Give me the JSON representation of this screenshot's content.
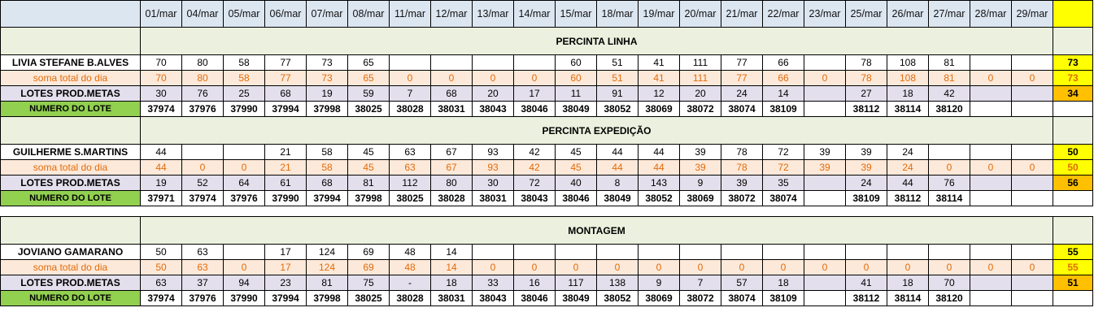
{
  "header": {
    "dates": [
      "01/mar",
      "04/mar",
      "05/mar",
      "06/mar",
      "07/mar",
      "08/mar",
      "11/mar",
      "12/mar",
      "13/mar",
      "14/mar",
      "15/mar",
      "18/mar",
      "19/mar",
      "20/mar",
      "21/mar",
      "22/mar",
      "23/mar",
      "25/mar",
      "26/mar",
      "27/mar",
      "28/mar",
      "29/mar"
    ]
  },
  "sections": [
    {
      "title": "PERCINTA LINHA",
      "worker": {
        "name": "LIVIA STEFANE B.ALVES",
        "values": [
          "70",
          "80",
          "58",
          "77",
          "73",
          "65",
          "",
          "",
          "",
          "",
          "60",
          "51",
          "41",
          "111",
          "77",
          "66",
          "",
          "78",
          "108",
          "81",
          "",
          ""
        ],
        "total": "73"
      },
      "soma": {
        "name": "soma total  do dia",
        "values": [
          "70",
          "80",
          "58",
          "77",
          "73",
          "65",
          "0",
          "0",
          "0",
          "0",
          "60",
          "51",
          "41",
          "111",
          "77",
          "66",
          "0",
          "78",
          "108",
          "81",
          "0",
          "0"
        ],
        "total": "73"
      },
      "lotes": {
        "name": "LOTES PROD.METAS",
        "values": [
          "30",
          "76",
          "25",
          "68",
          "19",
          "59",
          "7",
          "68",
          "20",
          "17",
          "11",
          "91",
          "12",
          "20",
          "24",
          "14",
          "",
          "27",
          "18",
          "42",
          "",
          ""
        ],
        "total": "34"
      },
      "numero": {
        "name": "NUMERO DO LOTE",
        "values": [
          "37974",
          "37976",
          "37990",
          "37994",
          "37998",
          "38025",
          "38028",
          "38031",
          "38043",
          "38046",
          "38049",
          "38052",
          "38069",
          "38072",
          "38074",
          "38109",
          "",
          "38112",
          "38114",
          "38120",
          "",
          ""
        ],
        "total": ""
      }
    },
    {
      "title": "PERCINTA EXPEDIÇÃO",
      "worker": {
        "name": "GUILHERME S.MARTINS",
        "values": [
          "44",
          "",
          "",
          "21",
          "58",
          "45",
          "63",
          "67",
          "93",
          "42",
          "45",
          "44",
          "44",
          "39",
          "78",
          "72",
          "39",
          "39",
          "24",
          "",
          "",
          ""
        ],
        "total": "50"
      },
      "soma": {
        "name": "soma total  do dia",
        "values": [
          "44",
          "0",
          "0",
          "21",
          "58",
          "45",
          "63",
          "67",
          "93",
          "42",
          "45",
          "44",
          "44",
          "39",
          "78",
          "72",
          "39",
          "39",
          "24",
          "0",
          "0",
          "0"
        ],
        "total": "50"
      },
      "lotes": {
        "name": "LOTES PROD.METAS",
        "values": [
          "19",
          "52",
          "64",
          "61",
          "68",
          "81",
          "112",
          "80",
          "30",
          "72",
          "40",
          "8",
          "143",
          "9",
          "39",
          "35",
          "",
          "24",
          "44",
          "76",
          "",
          ""
        ],
        "total": "56"
      },
      "numero": {
        "name": "NUMERO DO LOTE",
        "values": [
          "37971",
          "37974",
          "37976",
          "37990",
          "37994",
          "37998",
          "38025",
          "38028",
          "38031",
          "38043",
          "38046",
          "38049",
          "38052",
          "38069",
          "38072",
          "38074",
          "",
          "38109",
          "38112",
          "38114",
          "",
          ""
        ],
        "total": ""
      }
    },
    {
      "title": "MONTAGEM",
      "worker": {
        "name": "JOVIANO GAMARANO",
        "values": [
          "50",
          "63",
          "",
          "17",
          "124",
          "69",
          "48",
          "14",
          "",
          "",
          "",
          "",
          "",
          "",
          "",
          "",
          "",
          "",
          "",
          "",
          "",
          ""
        ],
        "total": "55"
      },
      "soma": {
        "name": "soma total  do dia",
        "values": [
          "50",
          "63",
          "0",
          "17",
          "124",
          "69",
          "48",
          "14",
          "0",
          "0",
          "0",
          "0",
          "0",
          "0",
          "0",
          "0",
          "0",
          "0",
          "0",
          "0",
          "0",
          "0"
        ],
        "total": "55"
      },
      "lotes": {
        "name": "LOTES PROD.METAS",
        "values": [
          "63",
          "37",
          "94",
          "23",
          "81",
          "75",
          "-",
          "18",
          "33",
          "16",
          "117",
          "138",
          "9",
          "7",
          "57",
          "18",
          "",
          "41",
          "18",
          "70",
          "",
          ""
        ],
        "total": "51"
      },
      "numero": {
        "name": "NUMERO DO LOTE",
        "values": [
          "37974",
          "37976",
          "37990",
          "37994",
          "37998",
          "38025",
          "38028",
          "38031",
          "38043",
          "38046",
          "38049",
          "38052",
          "38069",
          "38072",
          "38074",
          "38109",
          "",
          "38112",
          "38114",
          "38120",
          "",
          ""
        ],
        "total": ""
      }
    }
  ]
}
